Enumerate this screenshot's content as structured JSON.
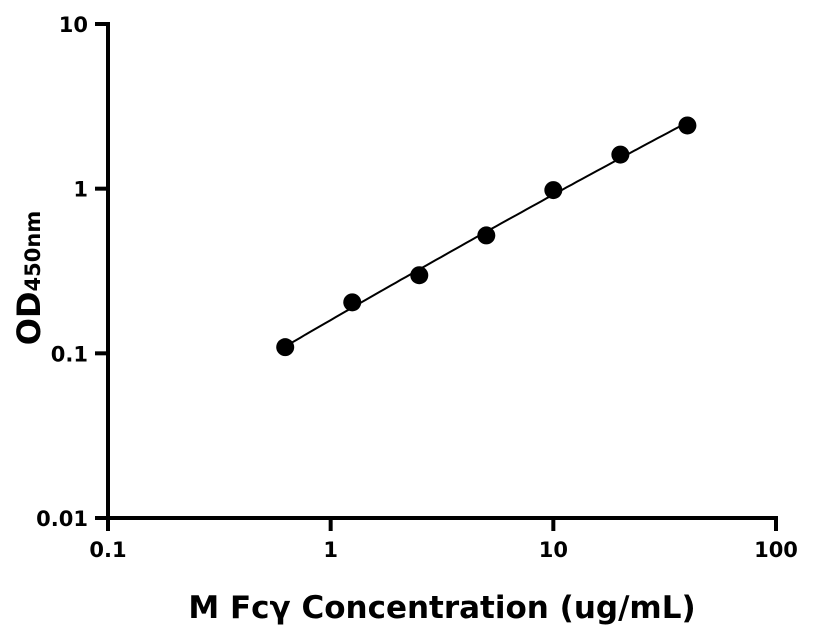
{
  "chart_data": {
    "type": "scatter",
    "title": "",
    "xlabel": "M Fcγ Concentration (ug/mL)",
    "ylabel_main": "OD",
    "ylabel_sub": "450nm",
    "x_scale": "log",
    "y_scale": "log",
    "xlim": [
      0.1,
      100
    ],
    "ylim": [
      0.01,
      10
    ],
    "x_ticks": [
      "0.1",
      "1",
      "10",
      "100"
    ],
    "y_ticks": [
      "0.01",
      "0.1",
      "1",
      "10"
    ],
    "grid": false,
    "series": [
      {
        "x": [
          0.625,
          1.25,
          2.5,
          5,
          10,
          20,
          40
        ],
        "y": [
          0.109,
          0.204,
          0.298,
          0.52,
          0.98,
          1.61,
          2.42
        ],
        "marker": "filled-circle",
        "fit_curve": true,
        "color": "#000000"
      }
    ]
  }
}
